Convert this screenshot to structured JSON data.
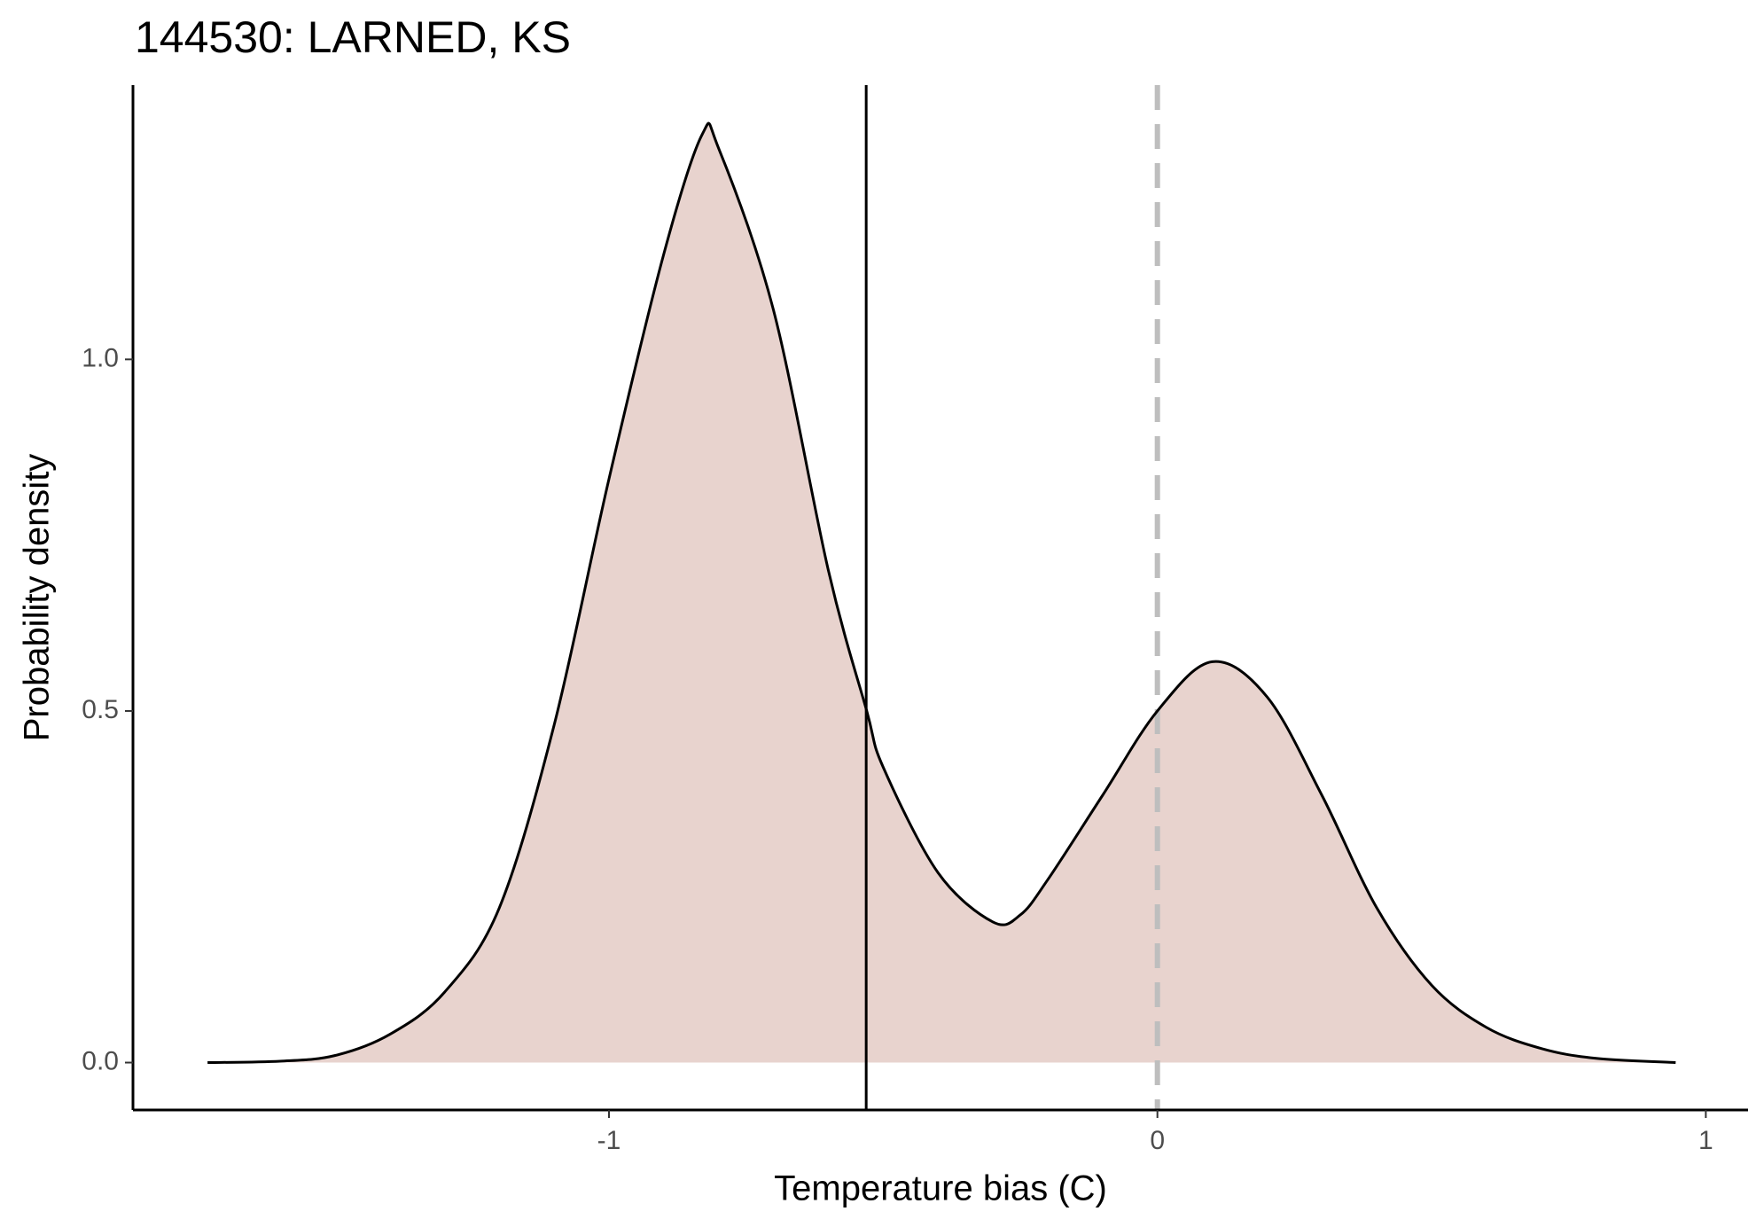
{
  "chart_data": {
    "type": "density",
    "title": "144530: LARNED, KS",
    "x_label": "Temperature bias (C)",
    "y_label": "Probability density",
    "x": [
      -1.732,
      -1.6,
      -1.5,
      -1.4,
      -1.3,
      -1.2,
      -1.1,
      -1.0,
      -0.9,
      -0.83,
      -0.8,
      -0.7,
      -0.6,
      -0.53,
      -0.5,
      -0.4,
      -0.3,
      -0.25,
      -0.2,
      -0.1,
      0,
      0.1,
      0.2,
      0.3,
      0.4,
      0.5,
      0.6,
      0.7,
      0.8,
      0.945
    ],
    "values": [
      0,
      0.002,
      0.01,
      0.04,
      0.1,
      0.22,
      0.48,
      0.83,
      1.15,
      1.32,
      1.3,
      1.07,
      0.7,
      0.5,
      0.42,
      0.27,
      0.2,
      0.21,
      0.26,
      0.38,
      0.5,
      0.57,
      0.52,
      0.38,
      0.22,
      0.11,
      0.05,
      0.02,
      0.006,
      0
    ],
    "color": "#e8d3ce",
    "line_color": "#000000",
    "reference_lines": [
      {
        "x": -0.531,
        "style": "solid",
        "color": "#000000"
      },
      {
        "x": 0,
        "style": "dashed",
        "color": "#bebebe"
      }
    ],
    "xlim": [
      -1.868,
      1.077
    ],
    "ylim": [
      -0.0674,
      1.39
    ],
    "xticks": [
      -1,
      0,
      1
    ],
    "yticks": [
      {
        "value": 0,
        "label": "0.0"
      },
      {
        "value": 0.5,
        "label": "0.5"
      },
      {
        "value": 1,
        "label": "1.0"
      }
    ],
    "grid": false
  }
}
